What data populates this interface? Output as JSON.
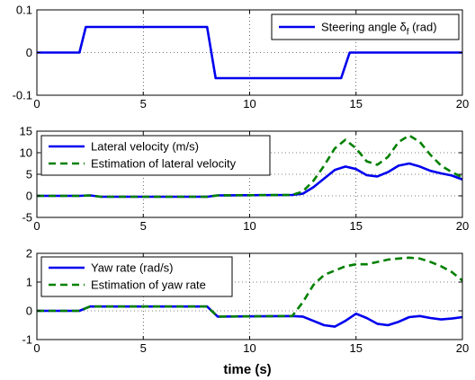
{
  "chart_data": [
    {
      "type": "line",
      "xlim": [
        0,
        20
      ],
      "ylim": [
        -0.1,
        0.1
      ],
      "xticks": [
        "0",
        "5",
        "10",
        "15",
        "20"
      ],
      "yticks": [
        "-0.1",
        "0",
        "0.1"
      ],
      "grid": "dotted",
      "legend_position": "top-right",
      "xlabel": "",
      "ylabel": "",
      "series": [
        {
          "name": "Steering angle δ_f (rad)",
          "label_main": "Steering angle δ",
          "label_sub": "f",
          "label_tail": " (rad)",
          "color": "#0000ee",
          "dash": "solid",
          "x": [
            0,
            2,
            2.3,
            8.0,
            8.4,
            14.3,
            14.7,
            20
          ],
          "y": [
            0,
            0,
            0.06,
            0.06,
            -0.06,
            -0.06,
            0,
            0
          ]
        }
      ]
    },
    {
      "type": "line",
      "xlim": [
        0,
        20
      ],
      "ylim": [
        -5,
        15
      ],
      "xticks": [
        "0",
        "5",
        "10",
        "15",
        "20"
      ],
      "yticks": [
        "-5",
        "0",
        "5",
        "10",
        "15"
      ],
      "grid": "dotted",
      "legend_position": "top-left",
      "xlabel": "",
      "ylabel": "",
      "series": [
        {
          "name": "Lateral velocity (m/s)",
          "color": "#0000ee",
          "dash": "solid",
          "x": [
            0,
            2,
            2.5,
            3,
            8,
            8.5,
            12,
            12.5,
            13,
            13.5,
            14,
            14.5,
            15,
            15.5,
            16,
            16.5,
            17,
            17.5,
            18,
            18.5,
            19,
            19.5,
            20
          ],
          "y": [
            0,
            0,
            0.1,
            -0.2,
            -0.2,
            0.1,
            0.2,
            0.5,
            2,
            4,
            6,
            6.8,
            6.2,
            4.8,
            4.5,
            5.5,
            7,
            7.5,
            6.8,
            5.8,
            5.2,
            4.7,
            3.8
          ]
        },
        {
          "name": "Estimation of lateral velocity",
          "color": "#008000",
          "dash": "dashed",
          "x": [
            0,
            2,
            2.5,
            3,
            8,
            8.5,
            12,
            12.5,
            13,
            13.5,
            14,
            14.5,
            15,
            15.5,
            16,
            16.5,
            17,
            17.5,
            18,
            18.5,
            19,
            19.5,
            20
          ],
          "y": [
            0,
            0,
            0.1,
            -0.2,
            -0.2,
            0.1,
            0.2,
            1,
            3.5,
            7,
            11,
            13,
            11,
            8,
            7.2,
            9,
            12.5,
            14,
            12.5,
            9.5,
            7,
            5.5,
            4.3
          ]
        }
      ]
    },
    {
      "type": "line",
      "xlim": [
        0,
        20
      ],
      "ylim": [
        -1,
        2
      ],
      "xticks": [
        "0",
        "5",
        "10",
        "15",
        "20"
      ],
      "yticks": [
        "-1",
        "0",
        "1",
        "2"
      ],
      "grid": "dotted",
      "legend_position": "top-left",
      "xlabel": "time (s)",
      "ylabel": "",
      "series": [
        {
          "name": "Yaw rate (rad/s)",
          "color": "#0000ee",
          "dash": "solid",
          "x": [
            0,
            2,
            2.5,
            8,
            8.5,
            12,
            12.5,
            13,
            13.5,
            14,
            14.5,
            15,
            15.5,
            16,
            16.5,
            17,
            17.5,
            18,
            18.5,
            19,
            19.5,
            20
          ],
          "y": [
            0,
            0,
            0.15,
            0.15,
            -0.2,
            -0.18,
            -0.2,
            -0.35,
            -0.5,
            -0.55,
            -0.35,
            -0.1,
            -0.25,
            -0.45,
            -0.5,
            -0.38,
            -0.22,
            -0.18,
            -0.25,
            -0.3,
            -0.27,
            -0.22
          ]
        },
        {
          "name": "Estimation of yaw rate",
          "color": "#008000",
          "dash": "dashed",
          "x": [
            0,
            2,
            2.5,
            8,
            8.5,
            12,
            12.5,
            13,
            13.5,
            14,
            14.5,
            15,
            15.5,
            16,
            16.5,
            17,
            17.5,
            18,
            18.5,
            19,
            19.5,
            20
          ],
          "y": [
            0,
            0,
            0.15,
            0.15,
            -0.2,
            -0.18,
            0.3,
            0.9,
            1.25,
            1.4,
            1.55,
            1.62,
            1.62,
            1.7,
            1.78,
            1.82,
            1.85,
            1.82,
            1.7,
            1.55,
            1.35,
            1.05
          ]
        }
      ]
    }
  ]
}
